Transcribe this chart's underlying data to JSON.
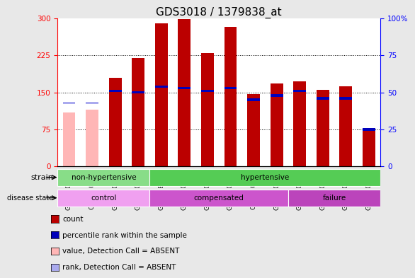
{
  "title": "GDS3018 / 1379838_at",
  "samples": [
    "GSM180079",
    "GSM180082",
    "GSM180085",
    "GSM180089",
    "GSM178755",
    "GSM180057",
    "GSM180059",
    "GSM180061",
    "GSM180062",
    "GSM180065",
    "GSM180068",
    "GSM180069",
    "GSM180073",
    "GSM180075"
  ],
  "counts": [
    110,
    115,
    180,
    220,
    290,
    298,
    230,
    283,
    147,
    168,
    172,
    155,
    163,
    78
  ],
  "percentile_ranks": [
    43,
    43,
    51,
    50,
    54,
    53,
    51,
    53,
    45,
    48,
    51,
    46,
    46,
    25
  ],
  "absent": [
    true,
    true,
    false,
    false,
    false,
    false,
    false,
    false,
    false,
    false,
    false,
    false,
    false,
    false
  ],
  "strain_groups": [
    {
      "label": "non-hypertensive",
      "start": 0,
      "end": 3,
      "color": "#88DD88"
    },
    {
      "label": "hypertensive",
      "start": 4,
      "end": 13,
      "color": "#55CC55"
    }
  ],
  "disease_groups": [
    {
      "label": "control",
      "start": 0,
      "end": 3,
      "color": "#F0A0F0"
    },
    {
      "label": "compensated",
      "start": 4,
      "end": 9,
      "color": "#CC55CC"
    },
    {
      "label": "failure",
      "start": 10,
      "end": 13,
      "color": "#BB44BB"
    }
  ],
  "bar_color_present": "#BB0000",
  "bar_color_absent": "#FFB6B6",
  "percentile_color": "#0000BB",
  "percentile_color_absent": "#AAAAEE",
  "ylim_left": [
    0,
    300
  ],
  "ylim_right": [
    0,
    100
  ],
  "yticks_left": [
    0,
    75,
    150,
    225,
    300
  ],
  "yticks_right": [
    0,
    25,
    50,
    75,
    100
  ],
  "legend_items": [
    {
      "label": "count",
      "color": "#BB0000"
    },
    {
      "label": "percentile rank within the sample",
      "color": "#0000BB"
    },
    {
      "label": "value, Detection Call = ABSENT",
      "color": "#FFB6B6"
    },
    {
      "label": "rank, Detection Call = ABSENT",
      "color": "#AAAAEE"
    }
  ],
  "background_color": "#E8E8E8",
  "plot_bg": "#FFFFFF",
  "title_fontsize": 11,
  "tick_fontsize": 7.5
}
